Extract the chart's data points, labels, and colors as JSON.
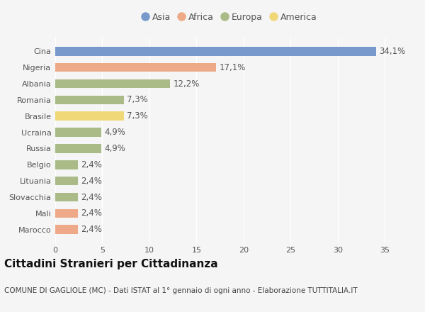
{
  "categories": [
    "Marocco",
    "Mali",
    "Slovacchia",
    "Lituania",
    "Belgio",
    "Russia",
    "Ucraina",
    "Brasile",
    "Romania",
    "Albania",
    "Nigeria",
    "Cina"
  ],
  "values": [
    2.4,
    2.4,
    2.4,
    2.4,
    2.4,
    4.9,
    4.9,
    7.3,
    7.3,
    12.2,
    17.1,
    34.1
  ],
  "labels": [
    "2,4%",
    "2,4%",
    "2,4%",
    "2,4%",
    "2,4%",
    "4,9%",
    "4,9%",
    "7,3%",
    "7,3%",
    "12,2%",
    "17,1%",
    "34,1%"
  ],
  "colors": [
    "#EEAA88",
    "#EEAA88",
    "#AABB88",
    "#AABB88",
    "#AABB88",
    "#AABB88",
    "#AABB88",
    "#F0D878",
    "#AABB88",
    "#AABB88",
    "#EEAA88",
    "#7799CC"
  ],
  "legend": [
    {
      "label": "Asia",
      "color": "#7799CC"
    },
    {
      "label": "Africa",
      "color": "#EEAA88"
    },
    {
      "label": "Europa",
      "color": "#AABB88"
    },
    {
      "label": "America",
      "color": "#F0D878"
    }
  ],
  "xlim": [
    0,
    37
  ],
  "xticks": [
    0,
    5,
    10,
    15,
    20,
    25,
    30,
    35
  ],
  "title": "Cittadini Stranieri per Cittadinanza",
  "subtitle": "COMUNE DI GAGLIOLE (MC) - Dati ISTAT al 1° gennaio di ogni anno - Elaborazione TUTTITALIA.IT",
  "bg_color": "#f5f5f5",
  "bar_height": 0.55,
  "label_fontsize": 8.5,
  "title_fontsize": 11,
  "subtitle_fontsize": 7.5,
  "tick_fontsize": 8,
  "legend_fontsize": 9,
  "grid_color": "#ffffff",
  "label_color": "#555555",
  "ytick_color": "#555555"
}
